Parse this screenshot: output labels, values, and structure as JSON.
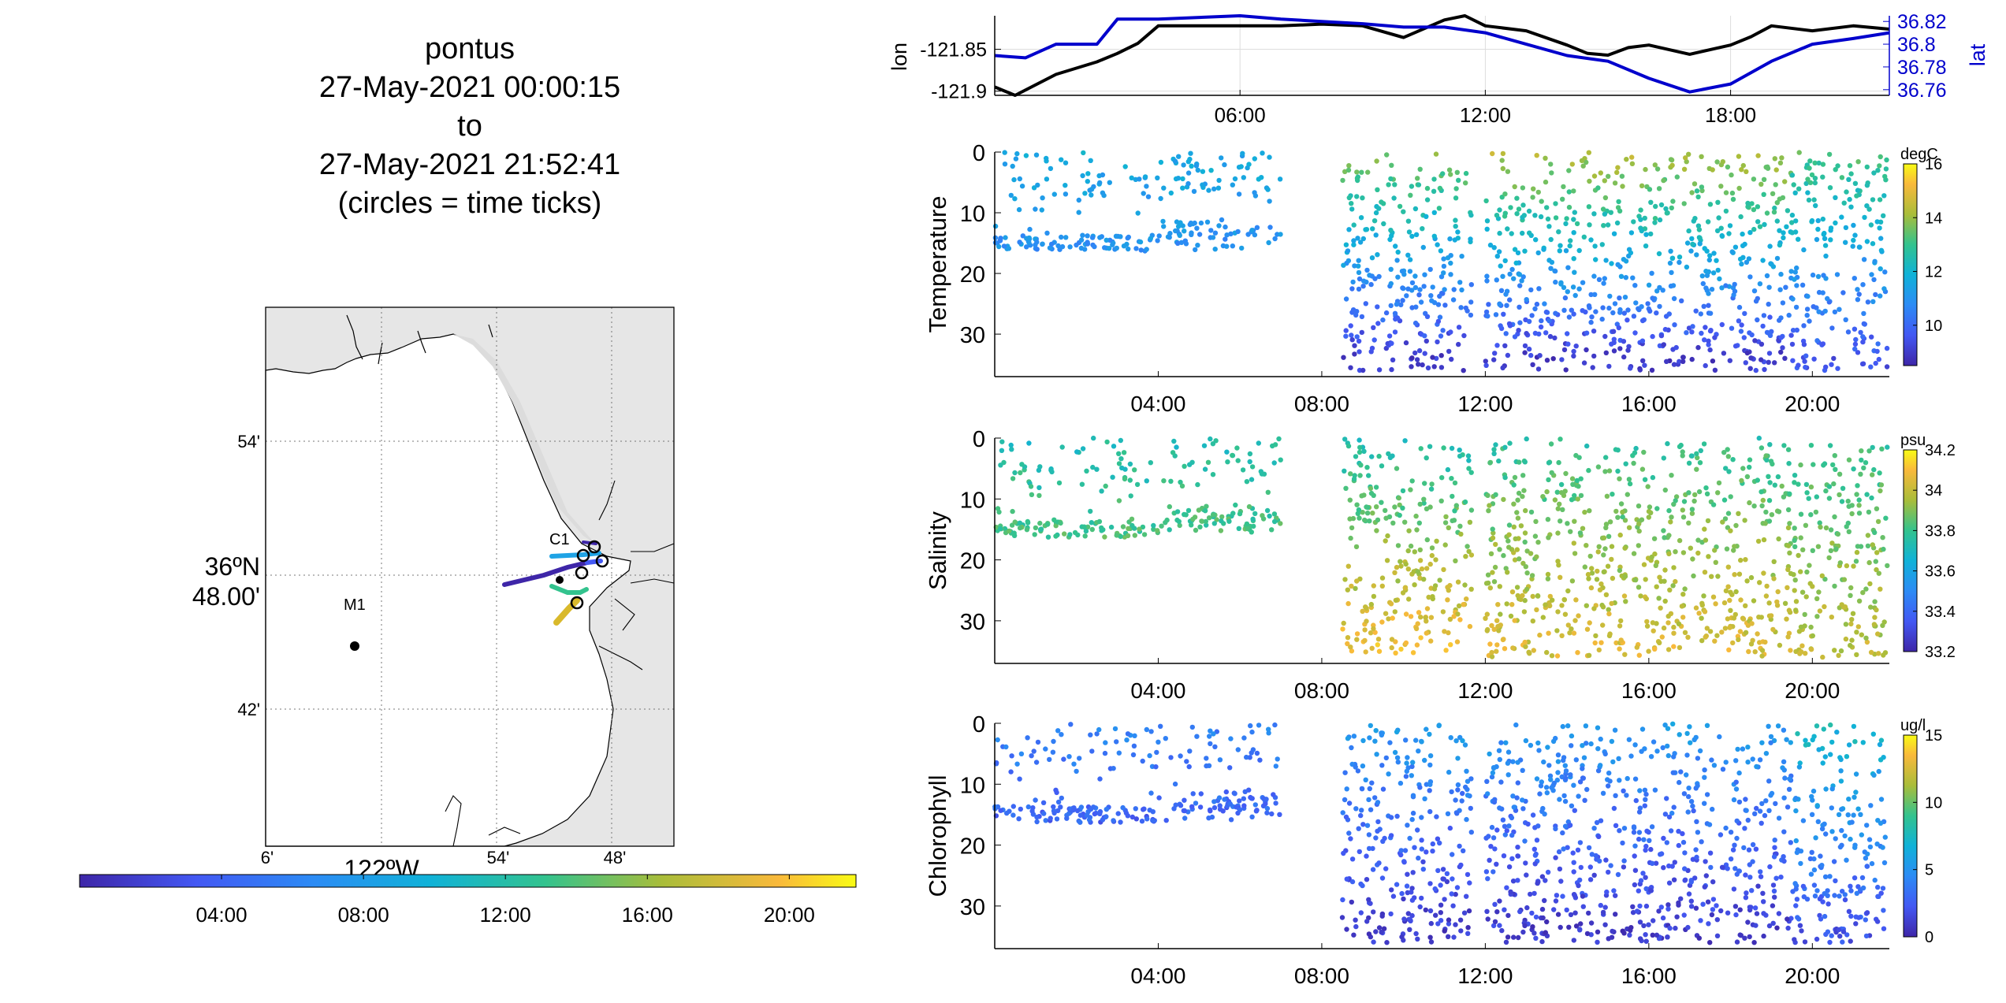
{
  "map": {
    "title_lines": [
      "pontus",
      "27-May-2021 00:00:15",
      "to",
      "27-May-2021 21:52:41",
      "(circles = time ticks)"
    ],
    "lat_ticks": [
      "54'",
      "48.00'",
      "42'"
    ],
    "lat_degree_label": "36ºN",
    "lon_ticks": [
      "6'",
      "54'",
      "48'"
    ],
    "lon_degree_label": "122ºW",
    "station_labels": [
      "C1",
      "M1"
    ],
    "land_color": "#e6e6e6",
    "time_colorbar_ticks": [
      "04:00",
      "08:00",
      "12:00",
      "16:00",
      "20:00"
    ]
  },
  "chart_data": [
    {
      "type": "line",
      "id": "position",
      "x_ticks": [
        "06:00",
        "12:00",
        "18:00"
      ],
      "xlim": [
        "00:00",
        "21:53"
      ],
      "series": [
        {
          "name": "lon",
          "axis": "left",
          "color": "#000000",
          "x": [
            "00:00",
            "00:30",
            "01:30",
            "02:30",
            "03:00",
            "03:30",
            "04:00",
            "05:00",
            "06:00",
            "07:00",
            "08:00",
            "09:00",
            "10:00",
            "11:00",
            "11:30",
            "12:00",
            "13:00",
            "14:00",
            "14:30",
            "15:00",
            "15:30",
            "16:00",
            "17:00",
            "18:00",
            "18:30",
            "19:00",
            "20:00",
            "21:00",
            "21:53"
          ],
          "values": [
            -121.895,
            -121.905,
            -121.88,
            -121.865,
            -121.855,
            -121.843,
            -121.822,
            -121.822,
            -121.822,
            -121.822,
            -121.82,
            -121.822,
            -121.836,
            -121.815,
            -121.81,
            -121.822,
            -121.828,
            -121.845,
            -121.855,
            -121.857,
            -121.848,
            -121.845,
            -121.856,
            -121.845,
            -121.835,
            -121.822,
            -121.828,
            -121.822,
            -121.826
          ]
        },
        {
          "name": "lat",
          "axis": "right",
          "color": "#0000cc",
          "x": [
            "00:00",
            "00:45",
            "01:30",
            "02:30",
            "03:00",
            "04:00",
            "06:00",
            "07:00",
            "08:00",
            "09:00",
            "10:00",
            "11:00",
            "12:00",
            "13:00",
            "14:00",
            "15:00",
            "16:00",
            "17:00",
            "18:00",
            "19:00",
            "20:00",
            "21:00",
            "21:53"
          ],
          "values": [
            36.79,
            36.788,
            36.8,
            36.8,
            36.822,
            36.822,
            36.825,
            36.822,
            36.82,
            36.818,
            36.815,
            36.815,
            36.81,
            36.8,
            36.79,
            36.785,
            36.77,
            36.758,
            36.765,
            36.785,
            36.8,
            36.805,
            36.81
          ]
        }
      ],
      "left_axis": {
        "label": "lon",
        "ticks": [
          -121.85,
          -121.9
        ],
        "tick_labels": [
          "-121.85",
          "-121.9"
        ],
        "ylim": [
          -121.905,
          -121.81
        ]
      },
      "right_axis": {
        "label": "lat",
        "ticks": [
          36.82,
          36.8,
          36.78,
          36.76
        ],
        "tick_labels": [
          "36.82",
          "36.8",
          "36.78",
          "36.76"
        ],
        "ylim": [
          36.755,
          36.825
        ]
      },
      "grid": true
    },
    {
      "type": "scatter",
      "id": "temperature",
      "ylabel": "Temperature",
      "y_ticks": [
        0,
        10,
        20,
        30
      ],
      "ylim": [
        0,
        37
      ],
      "y_reversed": true,
      "x_ticks": [
        "04:00",
        "08:00",
        "12:00",
        "16:00",
        "20:00"
      ],
      "xlim": [
        "00:00",
        "21:53"
      ],
      "colorbar": {
        "unit": "degC",
        "ticks": [
          16,
          14,
          12,
          10
        ],
        "range": [
          8.5,
          16
        ]
      },
      "gaps": [
        [
          "07:15",
          "08:15"
        ],
        [
          "11:45",
          "12:00"
        ]
      ],
      "profile_summary": [
        {
          "segment": [
            "00:00",
            "07:00"
          ],
          "surface_value": 11.5,
          "deep_value": 10.0,
          "band_depth": 15
        },
        {
          "segment": [
            "08:30",
            "11:40"
          ],
          "surface_value": 13.5,
          "deep_value": 9.0
        },
        {
          "segment": [
            "12:00",
            "19:30"
          ],
          "surface_value": 14.0,
          "deep_value": 9.0
        },
        {
          "segment": [
            "19:30",
            "21:50"
          ],
          "surface_value": 13.0,
          "deep_value": 9.5
        }
      ]
    },
    {
      "type": "scatter",
      "id": "salinity",
      "ylabel": "Salinity",
      "y_ticks": [
        0,
        10,
        20,
        30
      ],
      "ylim": [
        0,
        37
      ],
      "y_reversed": true,
      "x_ticks": [
        "04:00",
        "08:00",
        "12:00",
        "16:00",
        "20:00"
      ],
      "xlim": [
        "00:00",
        "21:53"
      ],
      "colorbar": {
        "unit": "psu",
        "ticks": [
          34.2,
          34,
          33.8,
          33.6,
          33.4,
          33.2
        ],
        "range": [
          33.2,
          34.2
        ]
      },
      "gaps": [
        [
          "07:15",
          "08:15"
        ],
        [
          "11:45",
          "12:00"
        ]
      ],
      "profile_summary": [
        {
          "segment": [
            "00:00",
            "07:00"
          ],
          "surface_value": 33.7,
          "deep_value": 33.9,
          "band_depth": 15
        },
        {
          "segment": [
            "08:30",
            "11:40"
          ],
          "surface_value": 33.7,
          "deep_value": 34.05
        },
        {
          "segment": [
            "12:00",
            "19:30"
          ],
          "surface_value": 33.75,
          "deep_value": 34.0
        },
        {
          "segment": [
            "19:30",
            "21:50"
          ],
          "surface_value": 33.75,
          "deep_value": 33.95
        }
      ]
    },
    {
      "type": "scatter",
      "id": "chlorophyll",
      "ylabel": "Chlorophyll",
      "y_ticks": [
        0,
        10,
        20,
        30
      ],
      "ylim": [
        0,
        37
      ],
      "y_reversed": true,
      "x_ticks": [
        "04:00",
        "08:00",
        "12:00",
        "16:00",
        "20:00"
      ],
      "xlim": [
        "00:00",
        "21:53"
      ],
      "colorbar": {
        "unit": "ug/l",
        "ticks": [
          15,
          10,
          5,
          0
        ],
        "range": [
          0,
          15
        ]
      },
      "gaps": [
        [
          "07:15",
          "08:15"
        ],
        [
          "11:45",
          "12:00"
        ]
      ],
      "profile_summary": [
        {
          "segment": [
            "00:00",
            "07:00"
          ],
          "surface_value": 4.0,
          "deep_value": 1.0,
          "band_depth": 15
        },
        {
          "segment": [
            "08:30",
            "11:40"
          ],
          "surface_value": 5.0,
          "deep_value": 1.0
        },
        {
          "segment": [
            "12:00",
            "19:30"
          ],
          "surface_value": 5.0,
          "deep_value": 1.0
        },
        {
          "segment": [
            "19:30",
            "21:50"
          ],
          "surface_value": 7.0,
          "deep_value": 2.0
        }
      ]
    }
  ]
}
